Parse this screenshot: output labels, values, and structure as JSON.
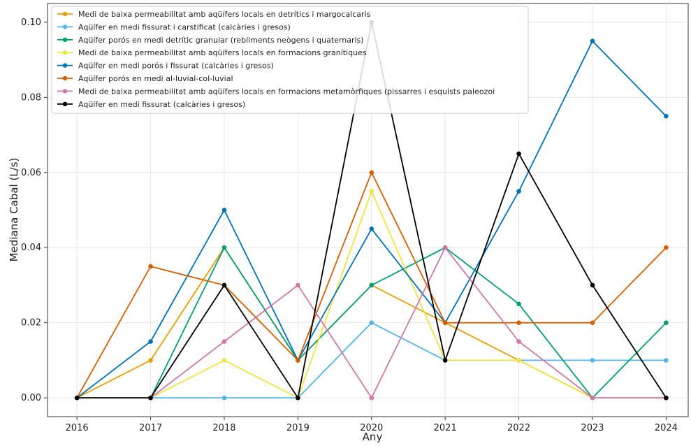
{
  "chart_data": {
    "type": "line",
    "title": "",
    "xlabel": "Any",
    "ylabel": "Mediana Cabal (L/s)",
    "x": [
      "2016",
      "2017",
      "2018",
      "2019",
      "2020",
      "2021",
      "2022",
      "2023",
      "2024"
    ],
    "xlim": [
      2015.6,
      2024.3
    ],
    "ylim": [
      -0.005,
      0.105
    ],
    "yticks": [
      0.0,
      0.02,
      0.04,
      0.06,
      0.08,
      0.1
    ],
    "ytick_labels": [
      "0.00",
      "0.02",
      "0.04",
      "0.06",
      "0.08",
      "0.10"
    ],
    "grid": true,
    "legend_position": "top-left",
    "series": [
      {
        "name": "Medi de baixa permeabilitat amb aqüífers locals en detrítics i margocalcaris",
        "color": "#E69F00",
        "values": [
          0.0,
          0.01,
          0.04,
          0.01,
          0.03,
          0.02,
          0.01,
          0.0,
          0.0
        ]
      },
      {
        "name": "Aqüífer en medi fissurat i carstificat (calcàries i gresos)",
        "color": "#56B4E9",
        "values": [
          0.0,
          0.0,
          0.0,
          0.0,
          0.02,
          0.01,
          0.01,
          0.01,
          0.01
        ]
      },
      {
        "name": "Aqüífer porós en medi detrític granular (rebliments neògens i quaternaris)",
        "color": "#009E73",
        "values": [
          0.0,
          0.0,
          0.04,
          0.01,
          0.03,
          0.04,
          0.025,
          0.0,
          0.02
        ]
      },
      {
        "name": "Medi de baixa permeabilitat amb aqüífers locals en formacions granítiques",
        "color": "#F0E442",
        "values": [
          0.0,
          0.0,
          0.01,
          0.0,
          0.055,
          0.01,
          0.01,
          0.0,
          0.0
        ]
      },
      {
        "name": "Aqüífer en medi porós i fissurat (calcàries i gresos)",
        "color": "#0072B2",
        "values": [
          0.0,
          0.015,
          0.05,
          0.01,
          0.045,
          0.02,
          0.055,
          0.095,
          0.075
        ]
      },
      {
        "name": "Aqüífer porós en medi al-luvial-col-luvial",
        "color": "#D55E00",
        "values": [
          0.0,
          0.035,
          0.03,
          0.01,
          0.06,
          0.02,
          0.02,
          0.02,
          0.04
        ]
      },
      {
        "name": "Medi de baixa permeabilitat amb aqüífers locals en formacions metamòrfiques (pissarres i esquists paleozoi",
        "color": "#CC79A7",
        "values": [
          0.0,
          0.0,
          0.015,
          0.03,
          0.0,
          0.04,
          0.015,
          0.0,
          0.0
        ]
      },
      {
        "name": "Aqüífer en medi fissurat (calcàries i gresos)",
        "color": "#000000",
        "values": [
          0.0,
          0.0,
          0.03,
          0.0,
          0.1,
          0.01,
          0.065,
          0.03,
          0.0
        ]
      }
    ]
  }
}
